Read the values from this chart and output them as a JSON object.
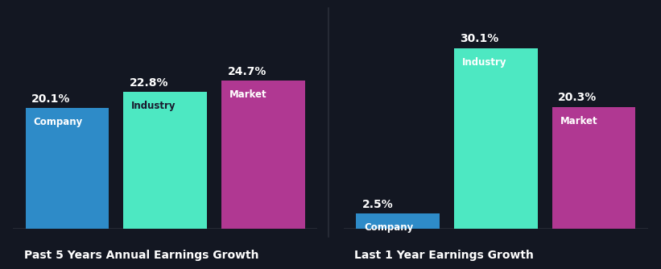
{
  "background_color": "#131722",
  "groups": [
    {
      "title": "Past 5 Years Annual Earnings Growth",
      "bars": [
        {
          "label": "Company",
          "value": 20.1,
          "color": "#2e8bc8"
        },
        {
          "label": "Industry",
          "value": 22.8,
          "color": "#4de8c2"
        },
        {
          "label": "Market",
          "value": 24.7,
          "color": "#b03892"
        }
      ]
    },
    {
      "title": "Last 1 Year Earnings Growth",
      "bars": [
        {
          "label": "Company",
          "value": 2.5,
          "color": "#2e8bc8"
        },
        {
          "label": "Industry",
          "value": 30.1,
          "color": "#4de8c2"
        },
        {
          "label": "Market",
          "value": 20.3,
          "color": "#b03892"
        }
      ]
    }
  ],
  "text_color": "#ffffff",
  "label_color_industry": "#111",
  "value_fontsize": 10,
  "label_fontsize": 8.5,
  "title_fontsize": 10,
  "divider_color": "#2a2e3a",
  "ylim": [
    0,
    35
  ]
}
